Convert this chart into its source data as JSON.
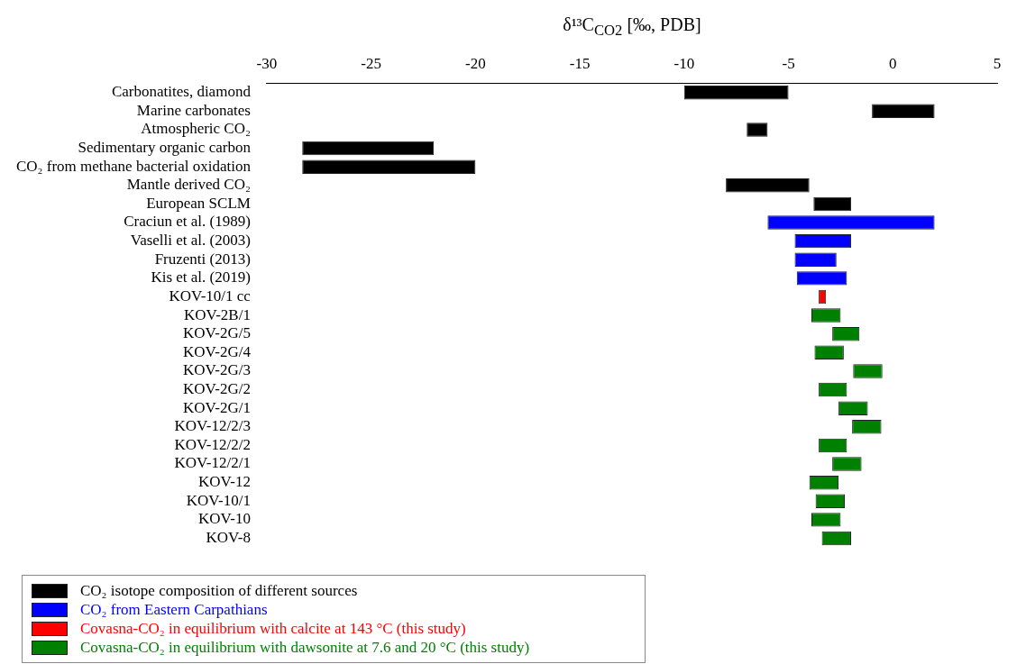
{
  "chart_data": {
    "type": "bar",
    "orientation": "horizontal",
    "xlabel": "δ¹³C$_{CO2}$ [‰, PDB]",
    "categories": [
      "Carbonatites, diamond",
      "Marine carbonates",
      "Atmospheric CO₂",
      "Sedimentary organic carbon",
      "CO₂ from methane bacterial oxidation",
      "Mantle derived CO₂",
      "European SCLM",
      "Craciun et al. (1989)",
      "Vaselli et al. (2003)",
      "Fruzenti (2013)",
      "Kis et al. (2019)",
      "KOV-10/1 cc",
      "KOV-2B/1",
      "KOV-2G/5",
      "KOV-2G/4",
      "KOV-2G/3",
      "KOV-2G/2",
      "KOV-2G/1",
      "KOV-12/2/3",
      "KOV-12/2/2",
      "KOV-12/2/1",
      "KOV-12",
      "KOV-10/1",
      "KOV-10",
      "KOV-8"
    ],
    "series": [
      {
        "name": "CO₂ isotope composition of different sources",
        "color": "#000000",
        "base": [
          -10,
          -1,
          -7,
          -28.3,
          -28.3,
          -8,
          -3.8,
          null,
          null,
          null,
          null,
          null,
          null,
          null,
          null,
          null,
          null,
          null,
          null,
          null,
          null,
          null,
          null,
          null,
          null
        ],
        "values": [
          5,
          3,
          1,
          6.3,
          8.3,
          4,
          1.8,
          null,
          null,
          null,
          null,
          null,
          null,
          null,
          null,
          null,
          null,
          null,
          null,
          null,
          null,
          null,
          null,
          null,
          null
        ]
      },
      {
        "name": "CO₂ from Eastern Carpathians",
        "color": "#0000ff",
        "base": [
          null,
          null,
          null,
          null,
          null,
          null,
          null,
          -6,
          -4.7,
          -4.7,
          -4.6,
          null,
          null,
          null,
          null,
          null,
          null,
          null,
          null,
          null,
          null,
          null,
          null,
          null,
          null
        ],
        "values": [
          null,
          null,
          null,
          null,
          null,
          null,
          null,
          8,
          2.7,
          2,
          2.4,
          null,
          null,
          null,
          null,
          null,
          null,
          null,
          null,
          null,
          null,
          null,
          null,
          null,
          null
        ]
      },
      {
        "name": "Covasna-CO₂ in equilibrium with calcite at 143 °C (this study)",
        "color": "#ff0000",
        "base": [
          null,
          null,
          null,
          null,
          null,
          null,
          null,
          null,
          null,
          null,
          null,
          -3.55,
          null,
          null,
          null,
          null,
          null,
          null,
          null,
          null,
          null,
          null,
          null,
          null,
          null
        ],
        "values": [
          null,
          null,
          null,
          null,
          null,
          null,
          null,
          null,
          null,
          null,
          null,
          0.35,
          null,
          null,
          null,
          null,
          null,
          null,
          null,
          null,
          null,
          null,
          null,
          null,
          null
        ]
      },
      {
        "name": "Covasna-CO₂ in equilibrium with dawsonite at 7.6 and 20 °C (this study)",
        "color": "#008000",
        "base": [
          null,
          null,
          null,
          null,
          null,
          null,
          null,
          null,
          null,
          null,
          null,
          null,
          -3.9,
          -2.9,
          -3.75,
          -1.9,
          -3.55,
          -2.6,
          -1.95,
          -3.55,
          -2.9,
          -4,
          -3.7,
          -3.9,
          -3.4
        ],
        "values": [
          null,
          null,
          null,
          null,
          null,
          null,
          null,
          null,
          null,
          null,
          null,
          null,
          1.4,
          1.3,
          1.4,
          1.4,
          1.35,
          1.4,
          1.4,
          1.35,
          1.4,
          1.4,
          1.4,
          1.4,
          1.4
        ]
      }
    ],
    "xlim": [
      -30,
      5
    ],
    "xticks": [
      -30,
      -25,
      -20,
      -15,
      -10,
      -5,
      0,
      5
    ],
    "grid": false,
    "legend": "bottom left"
  }
}
